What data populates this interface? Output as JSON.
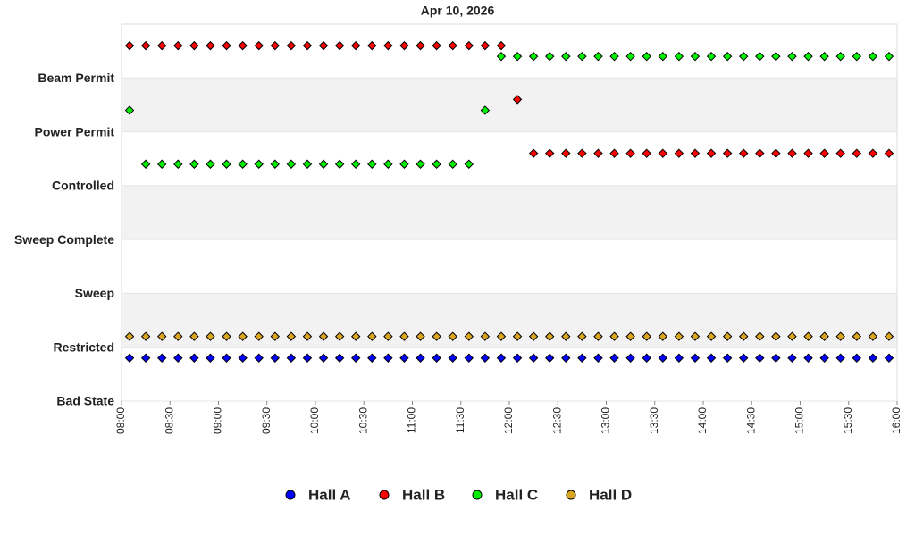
{
  "chart_data": {
    "type": "scatter",
    "title": "Apr 10, 2026",
    "x": [
      "08:05",
      "08:15",
      "08:25",
      "08:35",
      "08:45",
      "08:55",
      "09:05",
      "09:15",
      "09:25",
      "09:35",
      "09:45",
      "09:55",
      "10:05",
      "10:15",
      "10:25",
      "10:35",
      "10:45",
      "10:55",
      "11:05",
      "11:15",
      "11:25",
      "11:35",
      "11:45",
      "11:55",
      "12:05",
      "12:15",
      "12:25",
      "12:35",
      "12:45",
      "12:55",
      "13:05",
      "13:15",
      "13:25",
      "13:35",
      "13:45",
      "13:55",
      "14:05",
      "14:15",
      "14:25",
      "14:35",
      "14:45",
      "14:55",
      "15:05",
      "15:15",
      "15:25",
      "15:35",
      "15:45",
      "15:55"
    ],
    "series": [
      {
        "name": "Hall A",
        "color": "#0000ff",
        "values": [
          0.8,
          0.8,
          0.8,
          0.8,
          0.8,
          0.8,
          0.8,
          0.8,
          0.8,
          0.8,
          0.8,
          0.8,
          0.8,
          0.8,
          0.8,
          0.8,
          0.8,
          0.8,
          0.8,
          0.8,
          0.8,
          0.8,
          0.8,
          0.8,
          0.8,
          0.8,
          0.8,
          0.8,
          0.8,
          0.8,
          0.8,
          0.8,
          0.8,
          0.8,
          0.8,
          0.8,
          0.8,
          0.8,
          0.8,
          0.8,
          0.8,
          0.8,
          0.8,
          0.8,
          0.8,
          0.8,
          0.8,
          0.8
        ]
      },
      {
        "name": "Hall B",
        "color": "#ff0000",
        "values": [
          6.6,
          6.6,
          6.6,
          6.6,
          6.6,
          6.6,
          6.6,
          6.6,
          6.6,
          6.6,
          6.6,
          6.6,
          6.6,
          6.6,
          6.6,
          6.6,
          6.6,
          6.6,
          6.6,
          6.6,
          6.6,
          6.6,
          6.6,
          6.6,
          5.6,
          4.6,
          4.6,
          4.6,
          4.6,
          4.6,
          4.6,
          4.6,
          4.6,
          4.6,
          4.6,
          4.6,
          4.6,
          4.6,
          4.6,
          4.6,
          4.6,
          4.6,
          4.6,
          4.6,
          4.6,
          4.6,
          4.6,
          4.6
        ]
      },
      {
        "name": "Hall C",
        "color": "#00ee00",
        "values": [
          5.4,
          4.4,
          4.4,
          4.4,
          4.4,
          4.4,
          4.4,
          4.4,
          4.4,
          4.4,
          4.4,
          4.4,
          4.4,
          4.4,
          4.4,
          4.4,
          4.4,
          4.4,
          4.4,
          4.4,
          4.4,
          4.4,
          5.4,
          6.4,
          6.4,
          6.4,
          6.4,
          6.4,
          6.4,
          6.4,
          6.4,
          6.4,
          6.4,
          6.4,
          6.4,
          6.4,
          6.4,
          6.4,
          6.4,
          6.4,
          6.4,
          6.4,
          6.4,
          6.4,
          6.4,
          6.4,
          6.4,
          6.4
        ]
      },
      {
        "name": "Hall D",
        "color": "#daa520",
        "values": [
          1.2,
          1.2,
          1.2,
          1.2,
          1.2,
          1.2,
          1.2,
          1.2,
          1.2,
          1.2,
          1.2,
          1.2,
          1.2,
          1.2,
          1.2,
          1.2,
          1.2,
          1.2,
          1.2,
          1.2,
          1.2,
          1.2,
          1.2,
          1.2,
          1.2,
          1.2,
          1.2,
          1.2,
          1.2,
          1.2,
          1.2,
          1.2,
          1.2,
          1.2,
          1.2,
          1.2,
          1.2,
          1.2,
          1.2,
          1.2,
          1.2,
          1.2,
          1.2,
          1.2,
          1.2,
          1.2,
          1.2,
          1.2
        ]
      }
    ],
    "xlim": [
      "08:00",
      "16:00"
    ],
    "xticks": [
      "08:00",
      "08:30",
      "09:00",
      "09:30",
      "10:00",
      "10:30",
      "11:00",
      "11:30",
      "12:00",
      "12:30",
      "13:00",
      "13:30",
      "14:00",
      "14:30",
      "15:00",
      "15:30",
      "16:00"
    ],
    "ylim": [
      0,
      7
    ],
    "yticks": [
      {
        "value": 0,
        "label": "Bad State"
      },
      {
        "value": 1,
        "label": "Restricted"
      },
      {
        "value": 2,
        "label": "Sweep"
      },
      {
        "value": 3,
        "label": "Sweep Complete"
      },
      {
        "value": 4,
        "label": "Controlled"
      },
      {
        "value": 5,
        "label": "Power Permit"
      },
      {
        "value": 6,
        "label": "Beam Permit"
      }
    ],
    "band_color": "#f2f2f2",
    "legend": "bottom"
  }
}
